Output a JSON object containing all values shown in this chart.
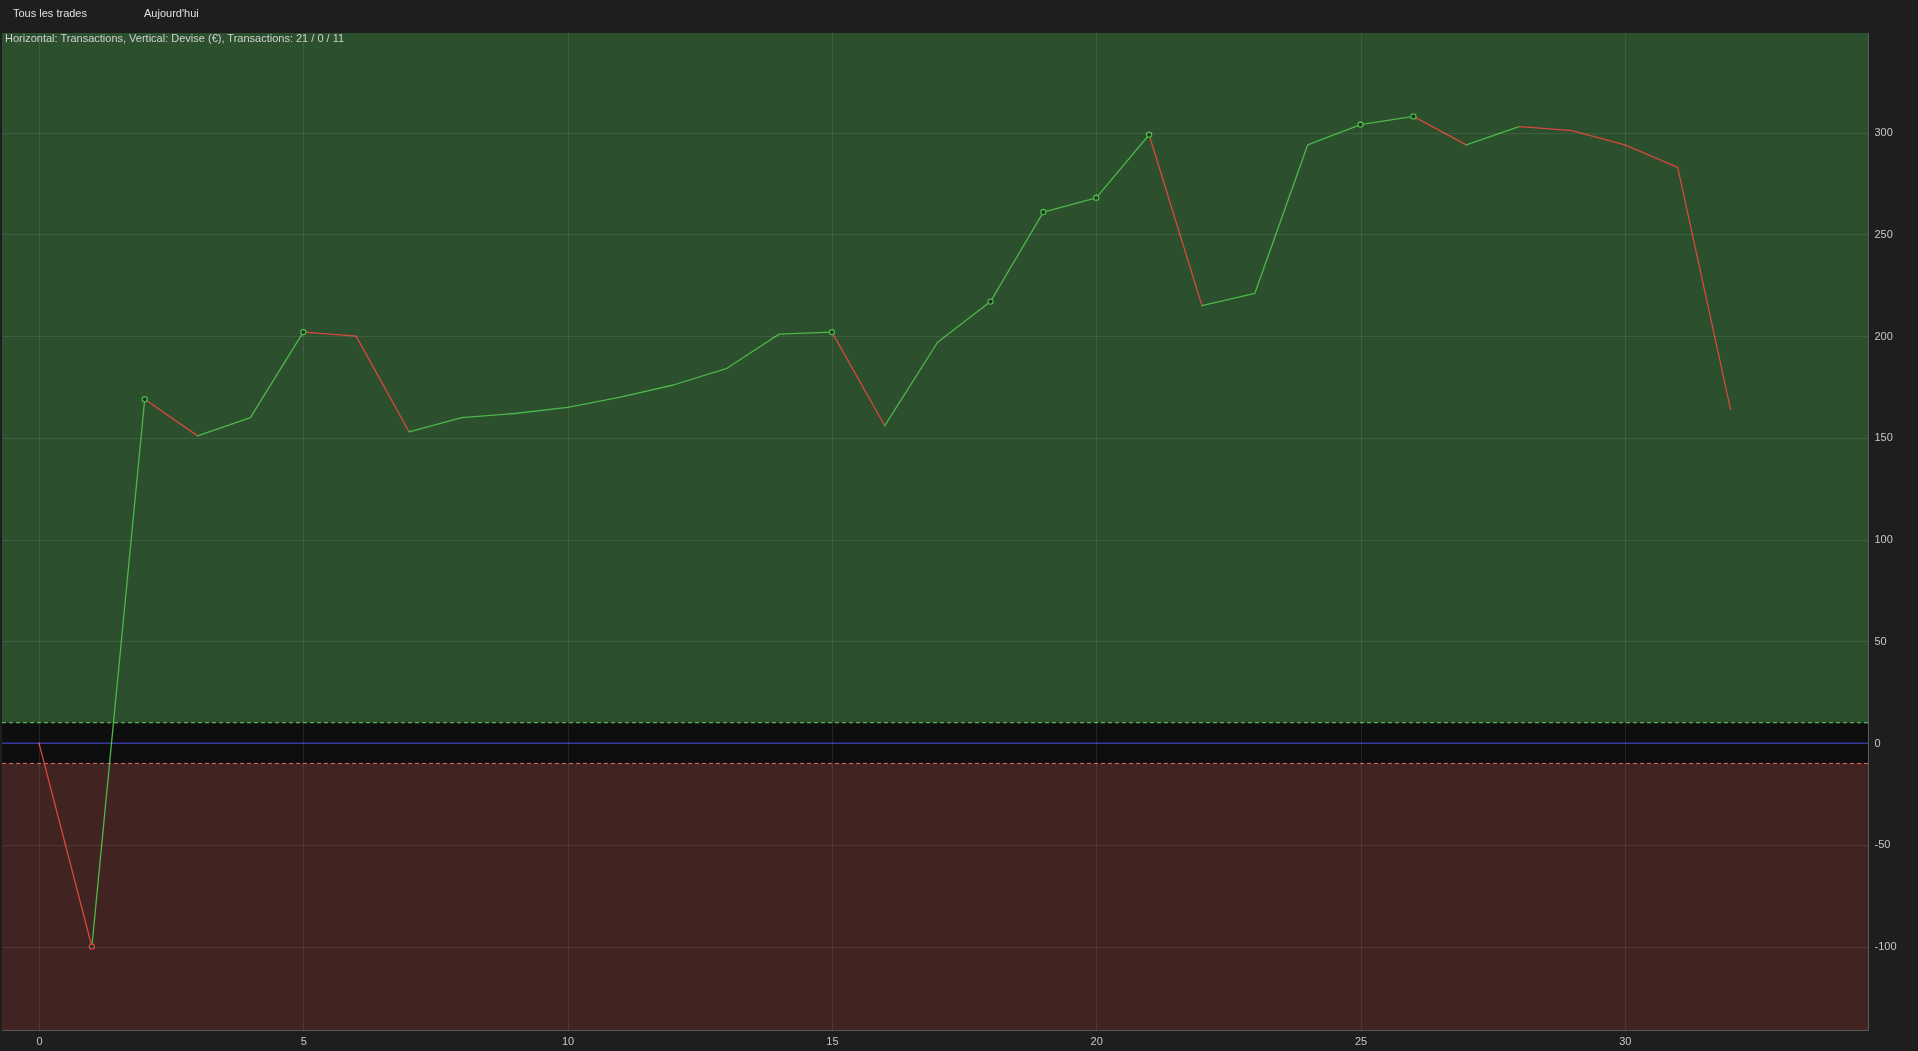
{
  "chart_data": {
    "type": "line",
    "title": "Horizontal: Transactions, Vertical: Devise (€), Transactions: 21 / 0 / 11",
    "annotations": [
      "Tous les trades",
      "Aujourd'hui"
    ],
    "xlim": [
      -0.7,
      34.6
    ],
    "ylim": [
      -141,
      349
    ],
    "xticks": [
      0,
      5,
      10,
      15,
      20,
      25,
      30
    ],
    "yticks": [
      -100,
      -50,
      0,
      50,
      100,
      150,
      200,
      250,
      300
    ],
    "grid": true,
    "line_style": "solid",
    "bands": [
      {
        "axis": "y",
        "from": 10,
        "to": 349,
        "color": "#2c4f2e"
      },
      {
        "axis": "y",
        "from": -10,
        "to": 10,
        "color": "#0e0e0e"
      },
      {
        "axis": "y",
        "from": -141,
        "to": -10,
        "color": "#412321"
      }
    ],
    "ref_lines": [
      {
        "axis": "y",
        "value": 10,
        "color": "#6fd46a",
        "line_style": "dashed"
      },
      {
        "axis": "y",
        "value": -10,
        "color": "#e06a64",
        "line_style": "dashed"
      },
      {
        "axis": "y",
        "value": 0,
        "color": "#3a3ae0",
        "line_style": "solid"
      }
    ],
    "series": [
      {
        "color": "#d9483f",
        "x": [
          0,
          1
        ],
        "values": [
          0,
          -100
        ]
      },
      {
        "color": "#4cb848",
        "x": [
          1,
          2
        ],
        "values": [
          -100,
          169
        ]
      },
      {
        "color": "#d9483f",
        "x": [
          2,
          3
        ],
        "values": [
          169,
          151
        ]
      },
      {
        "color": "#4cb848",
        "x": [
          3,
          4,
          5
        ],
        "values": [
          151,
          160,
          202
        ]
      },
      {
        "color": "#d9483f",
        "x": [
          5,
          6,
          7
        ],
        "values": [
          202,
          200,
          153
        ]
      },
      {
        "color": "#4cb848",
        "x": [
          7,
          8,
          9,
          10,
          11,
          12,
          13,
          14,
          15
        ],
        "values": [
          153,
          160,
          162,
          165,
          170,
          176,
          184,
          201,
          202
        ]
      },
      {
        "color": "#d9483f",
        "x": [
          15,
          16
        ],
        "values": [
          202,
          156
        ]
      },
      {
        "color": "#4cb848",
        "x": [
          16,
          17,
          18,
          19,
          20,
          21
        ],
        "values": [
          156,
          197,
          217,
          261,
          268,
          299
        ]
      },
      {
        "color": "#d9483f",
        "x": [
          21,
          22
        ],
        "values": [
          299,
          215
        ]
      },
      {
        "color": "#4cb848",
        "x": [
          22,
          23,
          24,
          25,
          26
        ],
        "values": [
          215,
          221,
          294,
          304,
          308
        ]
      },
      {
        "color": "#d9483f",
        "x": [
          26,
          27
        ],
        "values": [
          308,
          294
        ]
      },
      {
        "color": "#4cb848",
        "x": [
          27,
          28
        ],
        "values": [
          294,
          303
        ]
      },
      {
        "color": "#d9483f",
        "x": [
          28,
          29,
          30,
          31,
          32
        ],
        "values": [
          303,
          301,
          294,
          283,
          164
        ]
      },
      {
        "type": "scatter",
        "marker": "circle",
        "color": "#4cb848",
        "x": [
          2,
          5,
          15,
          18,
          19,
          20,
          21,
          25,
          26
        ],
        "values": [
          169,
          202,
          202,
          217,
          261,
          268,
          299,
          304,
          308
        ]
      },
      {
        "type": "scatter",
        "marker": "circle",
        "color": "#d9483f",
        "x": [
          1
        ],
        "values": [
          -100
        ]
      }
    ]
  }
}
